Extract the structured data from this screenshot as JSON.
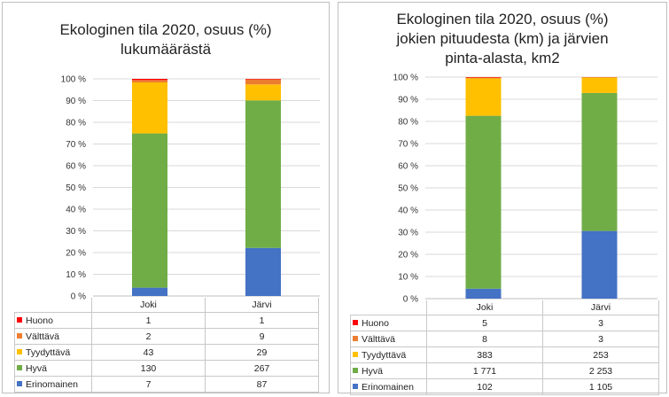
{
  "chart_data": [
    {
      "type": "bar",
      "stacked": "percent",
      "title": [
        "Ekologinen tila 2020, osuus (%)",
        "lukumäärästä"
      ],
      "categories": [
        "Joki",
        "Järvi"
      ],
      "series": [
        {
          "name": "Erinomainen",
          "color": "#4472c4",
          "values": [
            7,
            87
          ],
          "labels": [
            "7",
            "87"
          ]
        },
        {
          "name": "Hyvä",
          "color": "#70ad47",
          "values": [
            130,
            267
          ],
          "labels": [
            "130",
            "267"
          ]
        },
        {
          "name": "Tyydyttävä",
          "color": "#ffc000",
          "values": [
            43,
            29
          ],
          "labels": [
            "43",
            "29"
          ]
        },
        {
          "name": "Välttävä",
          "color": "#ed7d31",
          "values": [
            2,
            9
          ],
          "labels": [
            "2",
            "9"
          ]
        },
        {
          "name": "Huono",
          "color": "#ff0000",
          "values": [
            1,
            1
          ],
          "labels": [
            "1",
            "1"
          ]
        }
      ],
      "ylim": [
        0,
        100
      ],
      "yticks": [
        "0 %",
        "10 %",
        "20 %",
        "30 %",
        "40 %",
        "50 %",
        "60 %",
        "70 %",
        "80 %",
        "90 %",
        "100 %"
      ],
      "legend": "data-table"
    },
    {
      "type": "bar",
      "stacked": "percent",
      "title": [
        "Ekologinen tila 2020, osuus (%)",
        "jokien pituudesta (km) ja järvien",
        "pinta-alasta, km2"
      ],
      "categories": [
        "Joki",
        "Järvi"
      ],
      "series": [
        {
          "name": "Erinomainen",
          "color": "#4472c4",
          "values": [
            102,
            1105
          ],
          "labels": [
            "102",
            "1 105"
          ]
        },
        {
          "name": "Hyvä",
          "color": "#70ad47",
          "values": [
            1771,
            2253
          ],
          "labels": [
            "1 771",
            "2 253"
          ]
        },
        {
          "name": "Tyydyttävä",
          "color": "#ffc000",
          "values": [
            383,
            253
          ],
          "labels": [
            "383",
            "253"
          ]
        },
        {
          "name": "Välttävä",
          "color": "#ed7d31",
          "values": [
            8,
            3
          ],
          "labels": [
            "8",
            "3"
          ]
        },
        {
          "name": "Huono",
          "color": "#ff0000",
          "values": [
            5,
            3
          ],
          "labels": [
            "5",
            "3"
          ]
        }
      ],
      "ylim": [
        0,
        100
      ],
      "yticks": [
        "0 %",
        "10 %",
        "20 %",
        "30 %",
        "40 %",
        "50 %",
        "60 %",
        "70 %",
        "80 %",
        "90 %",
        "100 %"
      ],
      "legend": "data-table"
    }
  ]
}
